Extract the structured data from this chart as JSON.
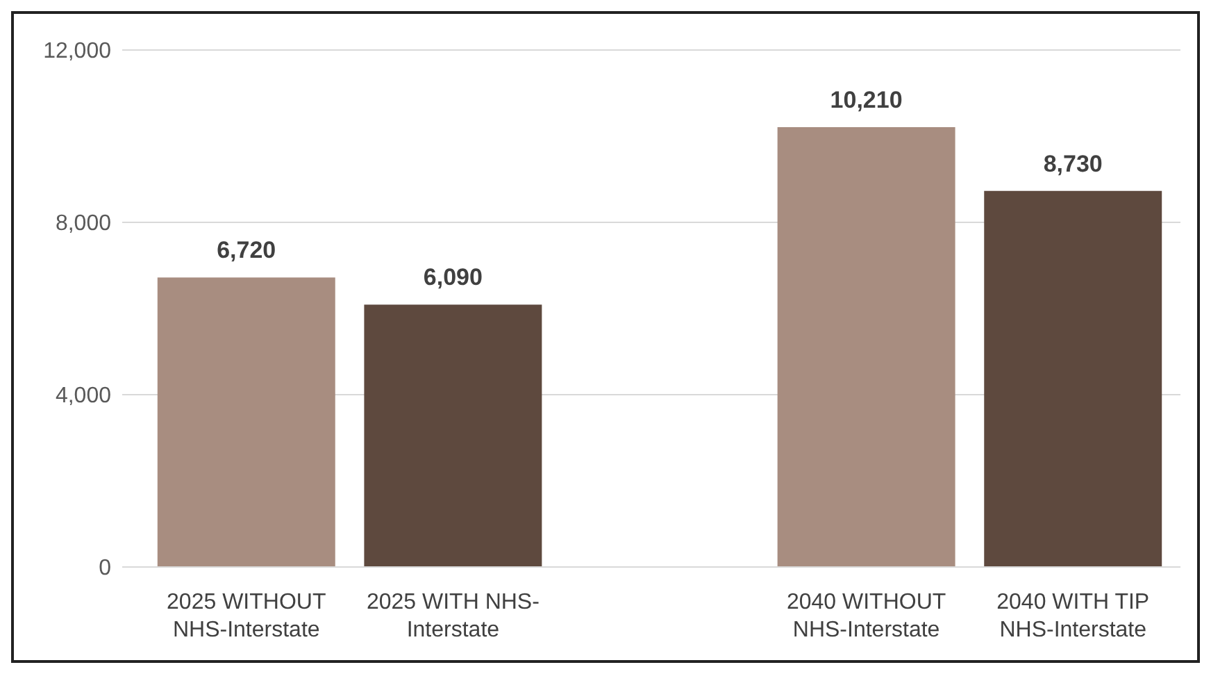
{
  "chart_data": {
    "type": "bar",
    "categories": [
      "2025 WITHOUT NHS-Interstate",
      "2025 WITH NHS-Interstate",
      null,
      "2040 WITHOUT NHS-Interstate",
      "2040 WITH TIP NHS-Interstate"
    ],
    "values": [
      6720,
      6090,
      null,
      10210,
      8730
    ],
    "colors": [
      "#a88d80",
      "#5e493e",
      null,
      "#a88d80",
      "#5e493e"
    ],
    "value_labels": [
      "6,720",
      "6,090",
      null,
      "10,210",
      "8,730"
    ],
    "ylim": [
      0,
      12000
    ],
    "yticks": [
      {
        "value": 0,
        "label": "0"
      },
      {
        "value": 4000,
        "label": "4,000"
      },
      {
        "value": 8000,
        "label": "8,000"
      },
      {
        "value": 12000,
        "label": "12,000"
      }
    ],
    "grid": true
  }
}
